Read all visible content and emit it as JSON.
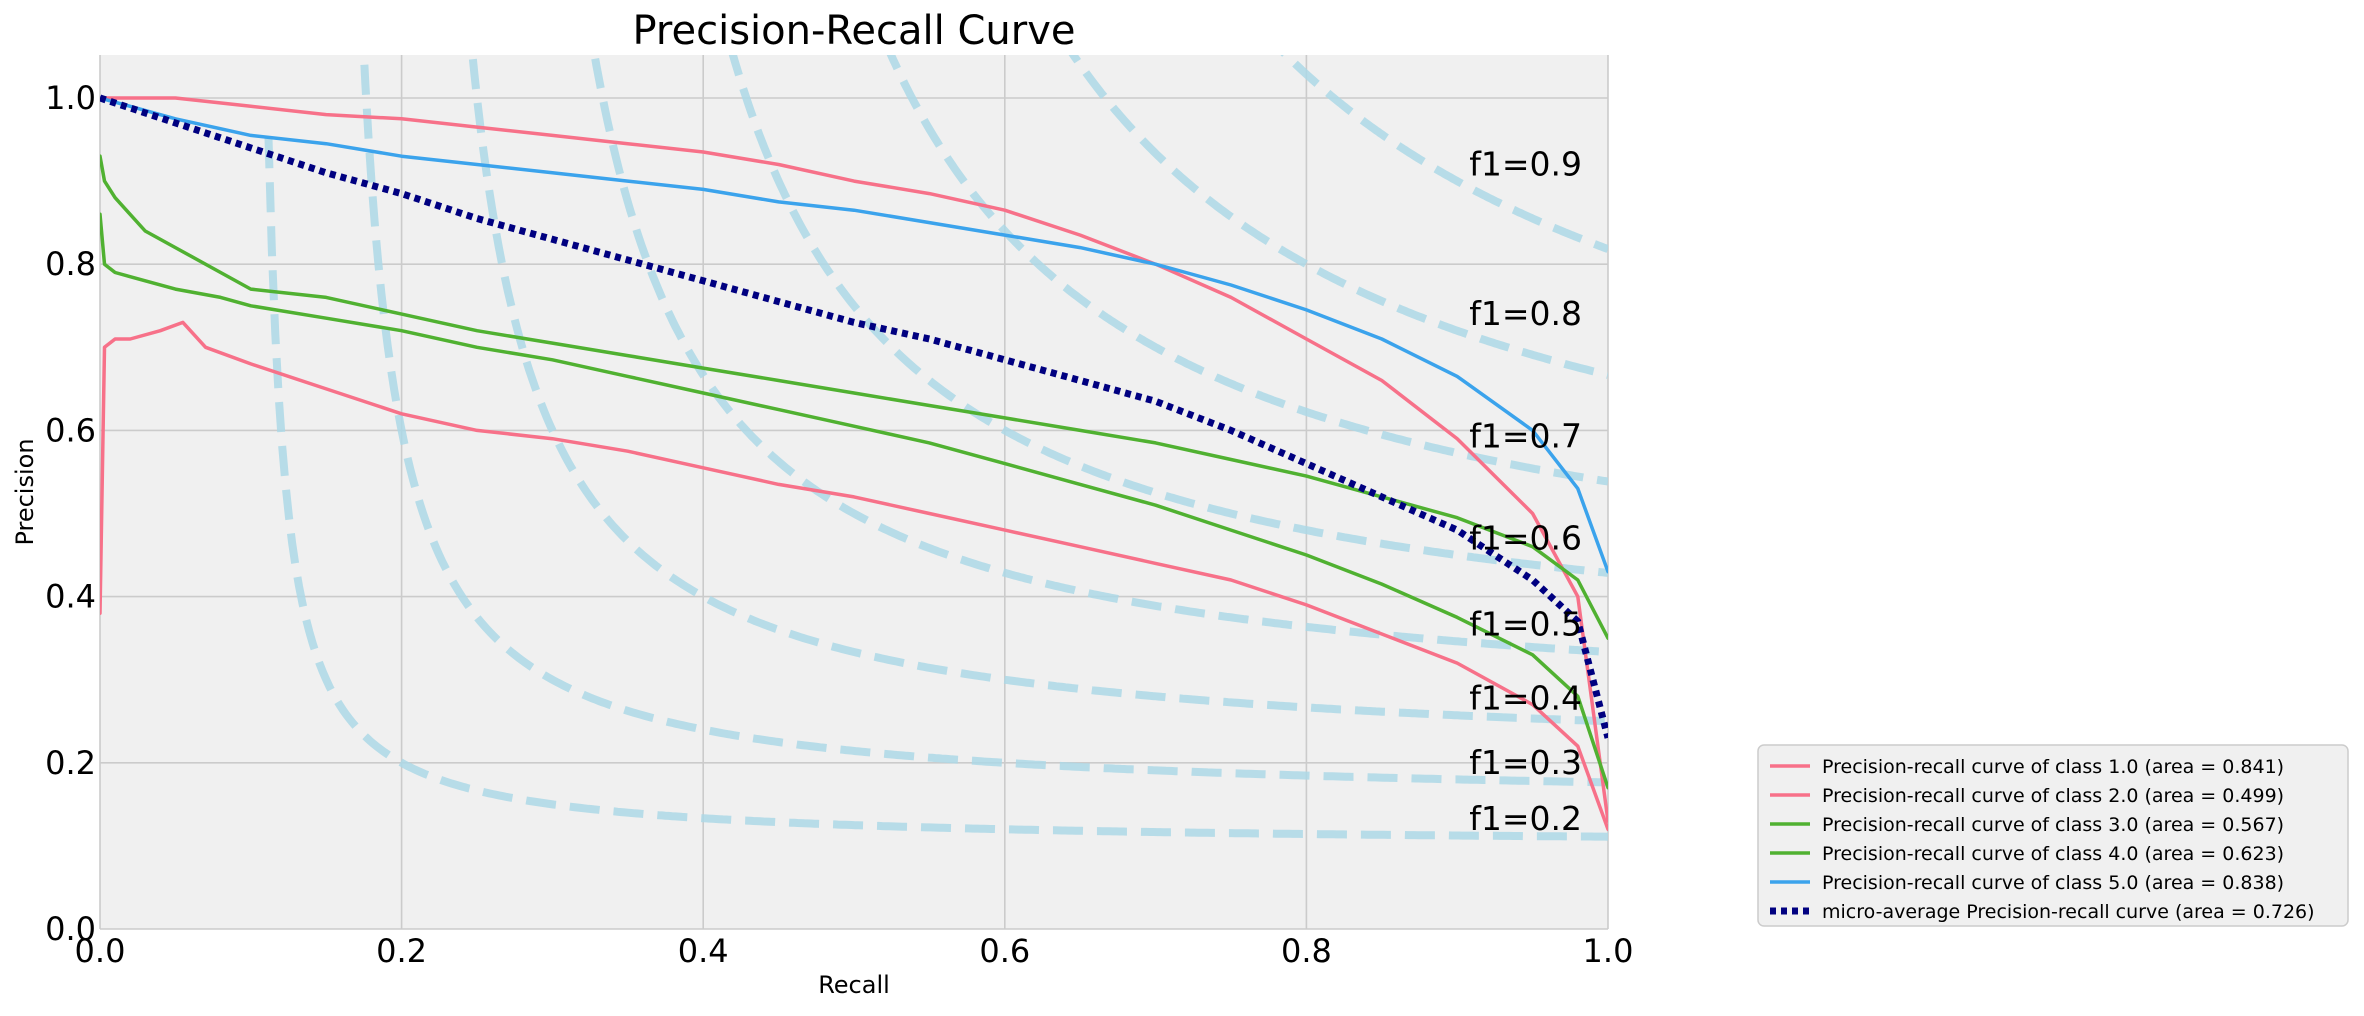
{
  "chart_data": {
    "type": "line",
    "title": "Precision-Recall Curve",
    "xlabel": "Recall",
    "ylabel": "Precision",
    "xlim": [
      0.0,
      1.0
    ],
    "ylim": [
      0.0,
      1.0
    ],
    "xticks": [
      "0.0",
      "0.2",
      "0.4",
      "0.6",
      "0.8",
      "1.0"
    ],
    "yticks": [
      "0.0",
      "0.2",
      "0.4",
      "0.6",
      "0.8",
      "1.0"
    ],
    "grid": true,
    "legend_position": "outside lower right",
    "plot_background": "#f0f0f0",
    "grid_color": "#cbcbcb",
    "iso_f1": {
      "color": "#add8e6",
      "levels": [
        0.2,
        0.3,
        0.4,
        0.5,
        0.6,
        0.7,
        0.8,
        0.9
      ],
      "labels": [
        "f1=0.2",
        "f1=0.3",
        "f1=0.4",
        "f1=0.5",
        "f1=0.6",
        "f1=0.7",
        "f1=0.8",
        "f1=0.9"
      ]
    },
    "series": [
      {
        "name": "Precision-recall curve of class 1.0 (area = 0.841)",
        "color": "#f77189",
        "style": "solid",
        "x": [
          0.0,
          0.05,
          0.1,
          0.15,
          0.2,
          0.25,
          0.3,
          0.35,
          0.4,
          0.45,
          0.5,
          0.55,
          0.6,
          0.65,
          0.7,
          0.75,
          0.8,
          0.85,
          0.9,
          0.95,
          0.98,
          1.0
        ],
        "y": [
          1.0,
          1.0,
          0.99,
          0.98,
          0.975,
          0.965,
          0.955,
          0.945,
          0.935,
          0.92,
          0.9,
          0.885,
          0.865,
          0.835,
          0.8,
          0.76,
          0.71,
          0.66,
          0.59,
          0.5,
          0.4,
          0.13
        ]
      },
      {
        "name": "Precision-recall curve of class 2.0 (area = 0.499)",
        "color": "#f77189",
        "style": "solid",
        "x": [
          0.0,
          0.003,
          0.01,
          0.02,
          0.04,
          0.055,
          0.07,
          0.1,
          0.15,
          0.2,
          0.25,
          0.3,
          0.35,
          0.4,
          0.45,
          0.5,
          0.55,
          0.6,
          0.65,
          0.7,
          0.75,
          0.8,
          0.85,
          0.9,
          0.95,
          0.98,
          1.0
        ],
        "y": [
          0.38,
          0.7,
          0.71,
          0.71,
          0.72,
          0.73,
          0.7,
          0.68,
          0.65,
          0.62,
          0.6,
          0.59,
          0.575,
          0.555,
          0.535,
          0.52,
          0.5,
          0.48,
          0.46,
          0.44,
          0.42,
          0.39,
          0.355,
          0.32,
          0.27,
          0.22,
          0.12
        ]
      },
      {
        "name": "Precision-recall curve of class 3.0 (area = 0.567)",
        "color": "#50b131",
        "style": "solid",
        "x": [
          0.0,
          0.003,
          0.01,
          0.03,
          0.05,
          0.08,
          0.1,
          0.15,
          0.2,
          0.25,
          0.3,
          0.35,
          0.4,
          0.45,
          0.5,
          0.55,
          0.6,
          0.65,
          0.7,
          0.75,
          0.8,
          0.85,
          0.9,
          0.95,
          0.98,
          1.0
        ],
        "y": [
          0.86,
          0.8,
          0.79,
          0.78,
          0.77,
          0.76,
          0.75,
          0.735,
          0.72,
          0.7,
          0.685,
          0.665,
          0.645,
          0.625,
          0.605,
          0.585,
          0.56,
          0.535,
          0.51,
          0.48,
          0.45,
          0.415,
          0.375,
          0.33,
          0.28,
          0.17
        ]
      },
      {
        "name": "Precision-recall curve of class 4.0 (area = 0.623)",
        "color": "#50b131",
        "style": "solid",
        "x": [
          0.0,
          0.003,
          0.01,
          0.03,
          0.05,
          0.08,
          0.1,
          0.15,
          0.2,
          0.25,
          0.3,
          0.35,
          0.4,
          0.45,
          0.5,
          0.55,
          0.6,
          0.65,
          0.7,
          0.75,
          0.8,
          0.85,
          0.9,
          0.95,
          0.98,
          1.0
        ],
        "y": [
          0.93,
          0.9,
          0.88,
          0.84,
          0.82,
          0.79,
          0.77,
          0.76,
          0.74,
          0.72,
          0.705,
          0.69,
          0.675,
          0.66,
          0.645,
          0.63,
          0.615,
          0.6,
          0.585,
          0.565,
          0.545,
          0.52,
          0.495,
          0.46,
          0.42,
          0.35
        ]
      },
      {
        "name": "Precision-recall curve of class 5.0 (area = 0.838)",
        "color": "#3ba3ec",
        "style": "solid",
        "x": [
          0.0,
          0.05,
          0.1,
          0.15,
          0.2,
          0.25,
          0.3,
          0.35,
          0.4,
          0.45,
          0.5,
          0.55,
          0.6,
          0.65,
          0.7,
          0.75,
          0.8,
          0.85,
          0.9,
          0.95,
          0.98,
          1.0
        ],
        "y": [
          1.0,
          0.975,
          0.955,
          0.945,
          0.93,
          0.92,
          0.91,
          0.9,
          0.89,
          0.875,
          0.865,
          0.85,
          0.835,
          0.82,
          0.8,
          0.775,
          0.745,
          0.71,
          0.665,
          0.6,
          0.53,
          0.43
        ]
      },
      {
        "name": "micro-average Precision-recall curve (area = 0.726)",
        "color": "#000080",
        "style": "dotted",
        "x": [
          0.0,
          0.05,
          0.1,
          0.15,
          0.2,
          0.25,
          0.3,
          0.35,
          0.4,
          0.45,
          0.5,
          0.55,
          0.6,
          0.65,
          0.7,
          0.75,
          0.8,
          0.85,
          0.9,
          0.95,
          0.98,
          1.0
        ],
        "y": [
          1.0,
          0.97,
          0.94,
          0.91,
          0.885,
          0.855,
          0.83,
          0.805,
          0.78,
          0.755,
          0.73,
          0.71,
          0.685,
          0.66,
          0.635,
          0.6,
          0.56,
          0.52,
          0.48,
          0.42,
          0.37,
          0.23
        ]
      }
    ]
  }
}
